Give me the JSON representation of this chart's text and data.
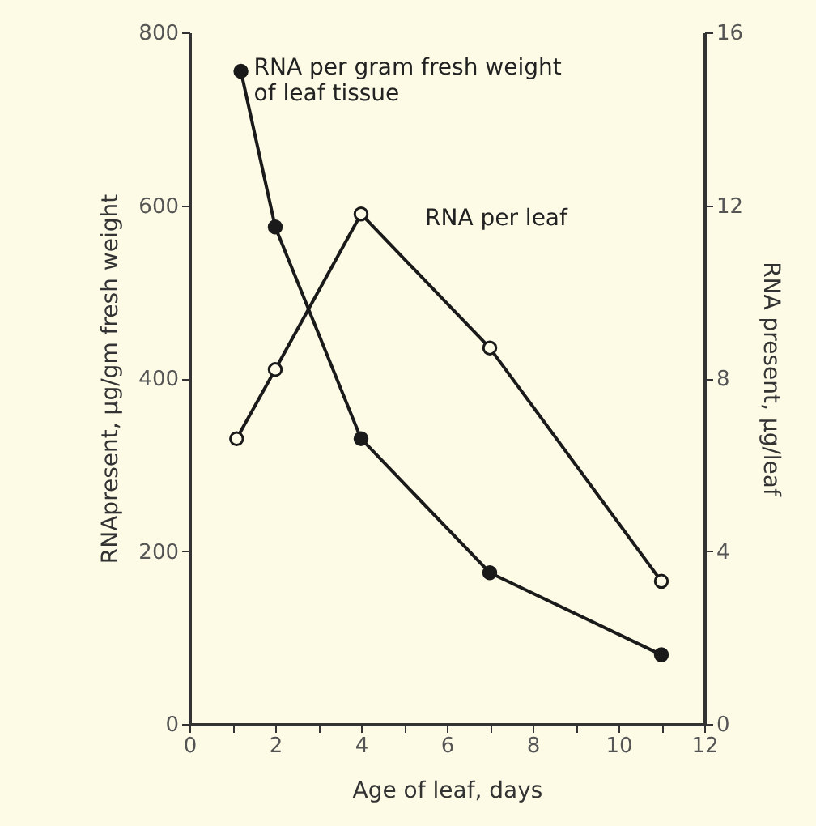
{
  "chart_data": {
    "type": "line",
    "xlabel": "Age of leaf, days",
    "ylabel": "RNApresent, μg/gm fresh weight",
    "y2label": "RNA present, μg/leaf",
    "xlim": [
      0,
      12
    ],
    "xticks": [
      0,
      {
        "value": 1,
        "label": null
      },
      2,
      {
        "value": 3,
        "label": null
      },
      4,
      {
        "value": 5,
        "label": null
      },
      6,
      {
        "value": 7,
        "label": null
      },
      8,
      {
        "value": 9,
        "label": null
      },
      10,
      {
        "value": 11,
        "label": null
      },
      12
    ],
    "ylim": [
      0,
      800
    ],
    "yticks": [
      0,
      200,
      400,
      600,
      800
    ],
    "y2lim": [
      0,
      16
    ],
    "y2ticks": [
      0,
      4,
      8,
      12,
      16
    ],
    "marker": "circle",
    "line_style": "solid",
    "grid": false,
    "series": [
      {
        "name": "RNA per gram fresh weight\nof leaf tissue",
        "color": "#1a1a1a",
        "x": [
          1.2,
          2,
          4,
          7,
          11
        ],
        "values": [
          755,
          575,
          330,
          175,
          80
        ]
      },
      {
        "name": "RNA per leaf",
        "color": "#1a1a1a",
        "axis": "y2",
        "x": [
          1.1,
          2,
          4,
          7,
          11
        ],
        "values": [
          6.6,
          8.2,
          11.8,
          8.7,
          3.3
        ]
      }
    ]
  }
}
